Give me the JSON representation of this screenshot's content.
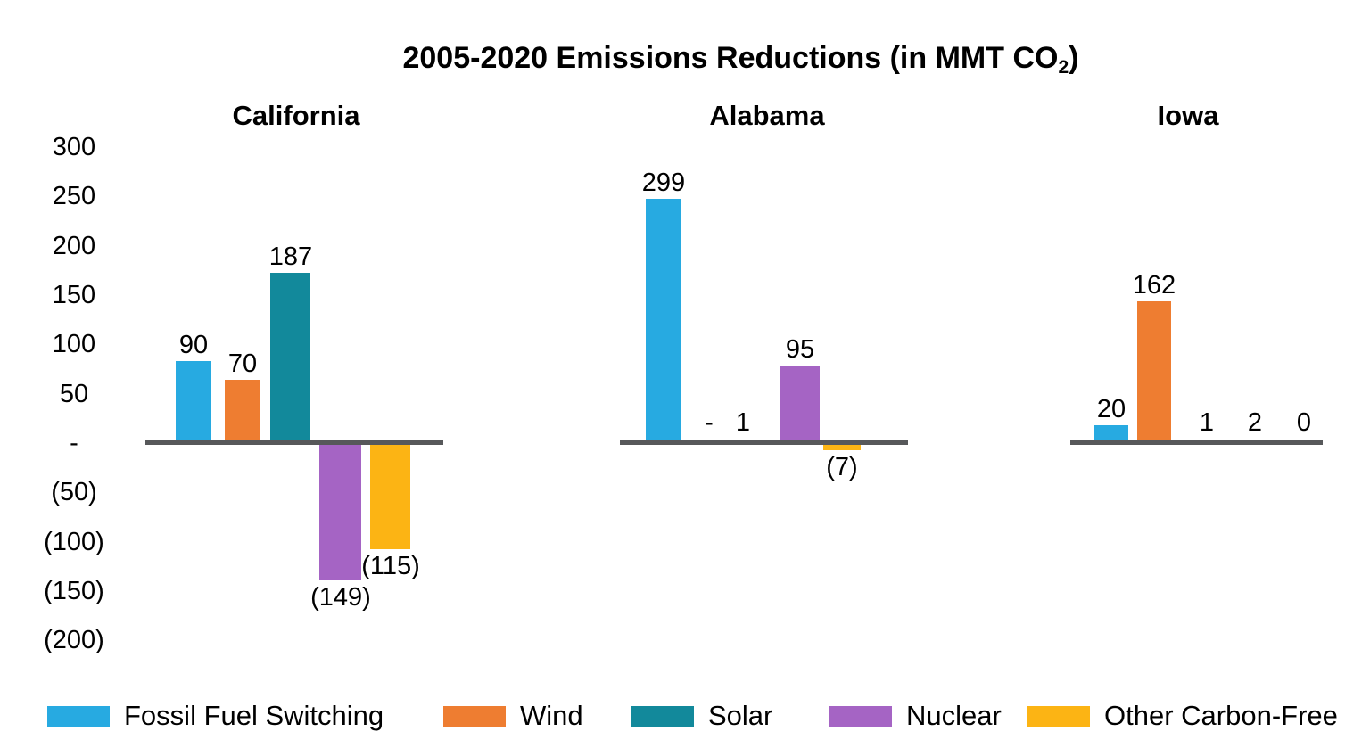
{
  "title": {
    "prefix": "2005-2020 Emissions Reductions (in MMT CO",
    "subscript": "2",
    "suffix": ")"
  },
  "chart_data": {
    "type": "bar",
    "title": "2005-2020 Emissions Reductions (in MMT CO2)",
    "value_unit": "MMT CO2",
    "grid": false,
    "legend_position": "bottom",
    "y_axis": {
      "range": [
        -200,
        300
      ],
      "tick_interval": 50,
      "tick_values": [
        300,
        250,
        200,
        150,
        100,
        50,
        0,
        -50,
        -100,
        -150,
        -200
      ],
      "tick_labels": [
        "300",
        "250",
        "200",
        "150",
        "100",
        "50",
        "-",
        "(50)",
        "(100)",
        "(150)",
        "(200)"
      ],
      "negative_format": "parentheses"
    },
    "categories": [
      "Fossil Fuel Switching",
      "Wind",
      "Solar",
      "Nuclear",
      "Other Carbon-Free"
    ],
    "panels": [
      {
        "title": "California",
        "values": [
          90,
          70,
          187,
          -149,
          -115
        ],
        "value_labels": [
          "90",
          "70",
          "187",
          "(149)",
          "(115)"
        ]
      },
      {
        "title": "Alabama",
        "values": [
          299,
          0,
          1,
          95,
          -7
        ],
        "value_labels": [
          "299",
          "-",
          "1",
          "95",
          "(7)"
        ]
      },
      {
        "title": "Iowa",
        "values": [
          20,
          162,
          1,
          2,
          0
        ],
        "value_labels": [
          "20",
          "162",
          "1",
          "2",
          "0"
        ]
      }
    ],
    "legend": {
      "entries": [
        {
          "label": "Fossil Fuel Switching",
          "color": "#27aae1"
        },
        {
          "label": "Wind",
          "color": "#ee7d31"
        },
        {
          "label": "Solar",
          "color": "#12899b"
        },
        {
          "label": "Nuclear",
          "color": "#a564c4"
        },
        {
          "label": "Other Carbon-Free",
          "color": "#fcb414"
        }
      ]
    }
  },
  "colors": {
    "background": "#ffffff",
    "axis_line": "#57585a",
    "text": "#000000",
    "series": [
      "#27aae1",
      "#ee7d31",
      "#12899b",
      "#a564c4",
      "#fcb414"
    ]
  }
}
